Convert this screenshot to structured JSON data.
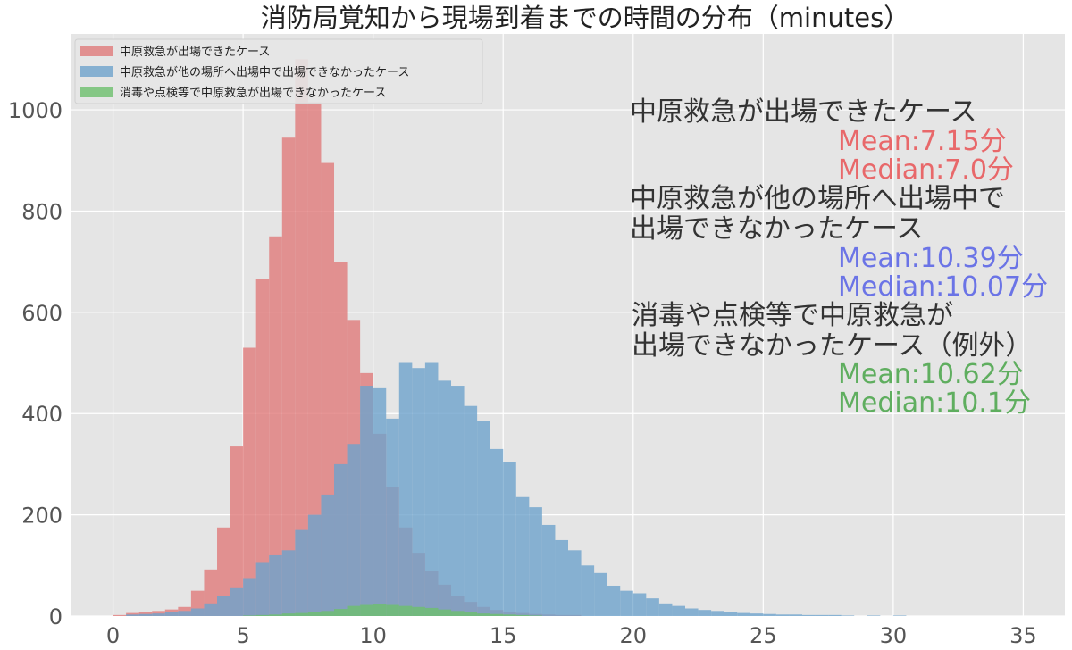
{
  "chart_data": {
    "type": "histogram",
    "title": "消防局覚知から現場到着までの時間の分布（minutes）",
    "xlabel": "",
    "ylabel": "",
    "xlim": [
      -1.6,
      36.6
    ],
    "ylim": [
      0,
      1150
    ],
    "x_ticks": [
      0,
      5,
      10,
      15,
      20,
      25,
      30,
      35
    ],
    "y_ticks": [
      0,
      200,
      400,
      600,
      800,
      1000
    ],
    "grid": true,
    "legend_position": "top-left",
    "bin_width": 0.5,
    "series": [
      {
        "name": "中原救急が出場できたケース",
        "color": "#e07b7b",
        "bins": [
          {
            "x": 0.0,
            "y": 2
          },
          {
            "x": 0.5,
            "y": 6
          },
          {
            "x": 1.0,
            "y": 8
          },
          {
            "x": 1.5,
            "y": 10
          },
          {
            "x": 2.0,
            "y": 13
          },
          {
            "x": 2.5,
            "y": 18
          },
          {
            "x": 3.0,
            "y": 50
          },
          {
            "x": 3.5,
            "y": 92
          },
          {
            "x": 4.0,
            "y": 175
          },
          {
            "x": 4.5,
            "y": 335
          },
          {
            "x": 5.0,
            "y": 530
          },
          {
            "x": 5.5,
            "y": 665
          },
          {
            "x": 6.0,
            "y": 750
          },
          {
            "x": 6.5,
            "y": 945
          },
          {
            "x": 7.0,
            "y": 1100
          },
          {
            "x": 7.5,
            "y": 1015
          },
          {
            "x": 8.0,
            "y": 895
          },
          {
            "x": 8.5,
            "y": 700
          },
          {
            "x": 9.0,
            "y": 585
          },
          {
            "x": 9.5,
            "y": 480
          },
          {
            "x": 10.0,
            "y": 360
          },
          {
            "x": 10.5,
            "y": 255
          },
          {
            "x": 11.0,
            "y": 175
          },
          {
            "x": 11.5,
            "y": 125
          },
          {
            "x": 12.0,
            "y": 90
          },
          {
            "x": 12.5,
            "y": 62
          },
          {
            "x": 13.0,
            "y": 40
          },
          {
            "x": 13.5,
            "y": 28
          },
          {
            "x": 14.0,
            "y": 18
          },
          {
            "x": 14.5,
            "y": 12
          },
          {
            "x": 15.0,
            "y": 8
          },
          {
            "x": 15.5,
            "y": 6
          },
          {
            "x": 16.0,
            "y": 4
          },
          {
            "x": 16.5,
            "y": 3
          },
          {
            "x": 17.0,
            "y": 2
          },
          {
            "x": 17.5,
            "y": 2
          }
        ]
      },
      {
        "name": "中原救急が他の場所へ出場中で出場できなかったケース",
        "color": "#6ea3cc",
        "bins": [
          {
            "x": 0.5,
            "y": 3
          },
          {
            "x": 1.0,
            "y": 4
          },
          {
            "x": 1.5,
            "y": 5
          },
          {
            "x": 2.0,
            "y": 8
          },
          {
            "x": 2.5,
            "y": 10
          },
          {
            "x": 3.0,
            "y": 15
          },
          {
            "x": 3.5,
            "y": 25
          },
          {
            "x": 4.0,
            "y": 40
          },
          {
            "x": 4.5,
            "y": 55
          },
          {
            "x": 5.0,
            "y": 75
          },
          {
            "x": 5.5,
            "y": 105
          },
          {
            "x": 6.0,
            "y": 120
          },
          {
            "x": 6.5,
            "y": 130
          },
          {
            "x": 7.0,
            "y": 170
          },
          {
            "x": 7.5,
            "y": 200
          },
          {
            "x": 8.0,
            "y": 240
          },
          {
            "x": 8.5,
            "y": 300
          },
          {
            "x": 9.0,
            "y": 340
          },
          {
            "x": 9.5,
            "y": 455
          },
          {
            "x": 10.0,
            "y": 450
          },
          {
            "x": 10.5,
            "y": 390
          },
          {
            "x": 11.0,
            "y": 500
          },
          {
            "x": 11.5,
            "y": 490
          },
          {
            "x": 12.0,
            "y": 500
          },
          {
            "x": 12.5,
            "y": 465
          },
          {
            "x": 13.0,
            "y": 455
          },
          {
            "x": 13.5,
            "y": 415
          },
          {
            "x": 14.0,
            "y": 385
          },
          {
            "x": 14.5,
            "y": 330
          },
          {
            "x": 15.0,
            "y": 305
          },
          {
            "x": 15.5,
            "y": 235
          },
          {
            "x": 16.0,
            "y": 215
          },
          {
            "x": 16.5,
            "y": 180
          },
          {
            "x": 17.0,
            "y": 150
          },
          {
            "x": 17.5,
            "y": 130
          },
          {
            "x": 18.0,
            "y": 100
          },
          {
            "x": 18.5,
            "y": 85
          },
          {
            "x": 19.0,
            "y": 60
          },
          {
            "x": 19.5,
            "y": 50
          },
          {
            "x": 20.0,
            "y": 45
          },
          {
            "x": 20.5,
            "y": 35
          },
          {
            "x": 21.0,
            "y": 25
          },
          {
            "x": 21.5,
            "y": 20
          },
          {
            "x": 22.0,
            "y": 15
          },
          {
            "x": 22.5,
            "y": 12
          },
          {
            "x": 23.0,
            "y": 10
          },
          {
            "x": 23.5,
            "y": 8
          },
          {
            "x": 24.0,
            "y": 6
          },
          {
            "x": 24.5,
            "y": 5
          },
          {
            "x": 25.0,
            "y": 4
          },
          {
            "x": 25.5,
            "y": 3
          },
          {
            "x": 26.0,
            "y": 3
          },
          {
            "x": 26.5,
            "y": 2
          },
          {
            "x": 27.0,
            "y": 2
          },
          {
            "x": 27.5,
            "y": 2
          },
          {
            "x": 28.0,
            "y": 1
          },
          {
            "x": 29.0,
            "y": 1
          },
          {
            "x": 30.0,
            "y": 1
          }
        ]
      },
      {
        "name": "消毒や点検等で中原救急が出場できなかったケース",
        "color": "#6dbf6d",
        "bins": [
          {
            "x": 5.0,
            "y": 1
          },
          {
            "x": 5.5,
            "y": 2
          },
          {
            "x": 6.0,
            "y": 3
          },
          {
            "x": 6.5,
            "y": 5
          },
          {
            "x": 7.0,
            "y": 6
          },
          {
            "x": 7.5,
            "y": 8
          },
          {
            "x": 8.0,
            "y": 10
          },
          {
            "x": 8.5,
            "y": 14
          },
          {
            "x": 9.0,
            "y": 20
          },
          {
            "x": 9.5,
            "y": 22
          },
          {
            "x": 10.0,
            "y": 24
          },
          {
            "x": 10.5,
            "y": 22
          },
          {
            "x": 11.0,
            "y": 20
          },
          {
            "x": 11.5,
            "y": 18
          },
          {
            "x": 12.0,
            "y": 16
          },
          {
            "x": 12.5,
            "y": 13
          },
          {
            "x": 13.0,
            "y": 10
          },
          {
            "x": 13.5,
            "y": 7
          },
          {
            "x": 14.0,
            "y": 5
          },
          {
            "x": 14.5,
            "y": 4
          },
          {
            "x": 15.0,
            "y": 3
          },
          {
            "x": 15.5,
            "y": 2
          },
          {
            "x": 16.0,
            "y": 1
          }
        ]
      }
    ],
    "annotations": [
      {
        "lines": [
          "中原救急が出場できたケース"
        ],
        "color": "#333333"
      },
      {
        "lines": [
          "Mean:7.15分"
        ],
        "color": "#e8686a"
      },
      {
        "lines": [
          "Median:7.0分"
        ],
        "color": "#e8686a"
      },
      {
        "lines": [
          "中原救急が他の場所へ出場中で",
          "出場できなかったケース"
        ],
        "color": "#333333"
      },
      {
        "lines": [
          "Mean:10.39分"
        ],
        "color": "#6b74e6"
      },
      {
        "lines": [
          "Median:10.07分"
        ],
        "color": "#6b74e6"
      },
      {
        "lines": [
          "消毒や点検等で中原救急が",
          "出場できなかったケース（例外）"
        ],
        "color": "#333333"
      },
      {
        "lines": [
          "Mean:10.62分"
        ],
        "color": "#5fae5f"
      },
      {
        "lines": [
          "Median:10.1分"
        ],
        "color": "#5fae5f"
      }
    ]
  }
}
